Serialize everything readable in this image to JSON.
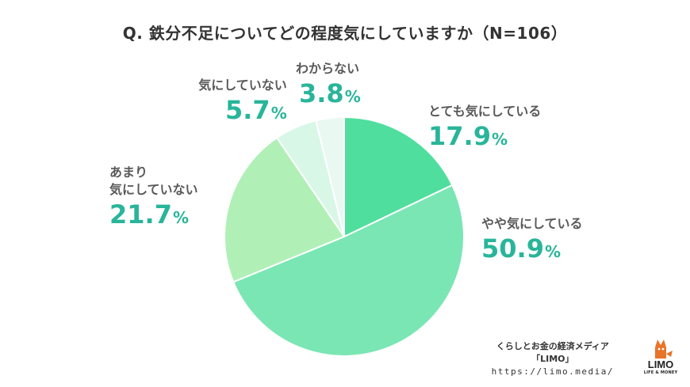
{
  "chart_data": {
    "type": "pie",
    "title": "Q. 鉄分不足についてどの程度気にしていますか（N=106）",
    "unit": "%",
    "slices": [
      {
        "label": "とても気にしている",
        "value": 17.9,
        "color": "#4fde9d"
      },
      {
        "label": "やや気にしている",
        "value": 50.9,
        "color": "#7ae6b4"
      },
      {
        "label": "あまり気にしていない",
        "value": 21.7,
        "color": "#b0f0b6"
      },
      {
        "label": "気にしていない",
        "value": 5.7,
        "color": "#d8f7e7"
      },
      {
        "label": "わからない",
        "value": 3.8,
        "color": "#eaf8f2"
      }
    ],
    "label_lines": {
      "あまり気にしていない": [
        "あまり",
        "気にしていない"
      ]
    },
    "start_angle_deg": 0,
    "direction": "clockwise"
  },
  "credit": {
    "line1": "くらしとお金の経済メディア",
    "line2": "「LIMO」",
    "url": "https://limo.media/"
  },
  "logo": {
    "brand": "LIMO",
    "tagline": "LIFE & MONEY"
  }
}
